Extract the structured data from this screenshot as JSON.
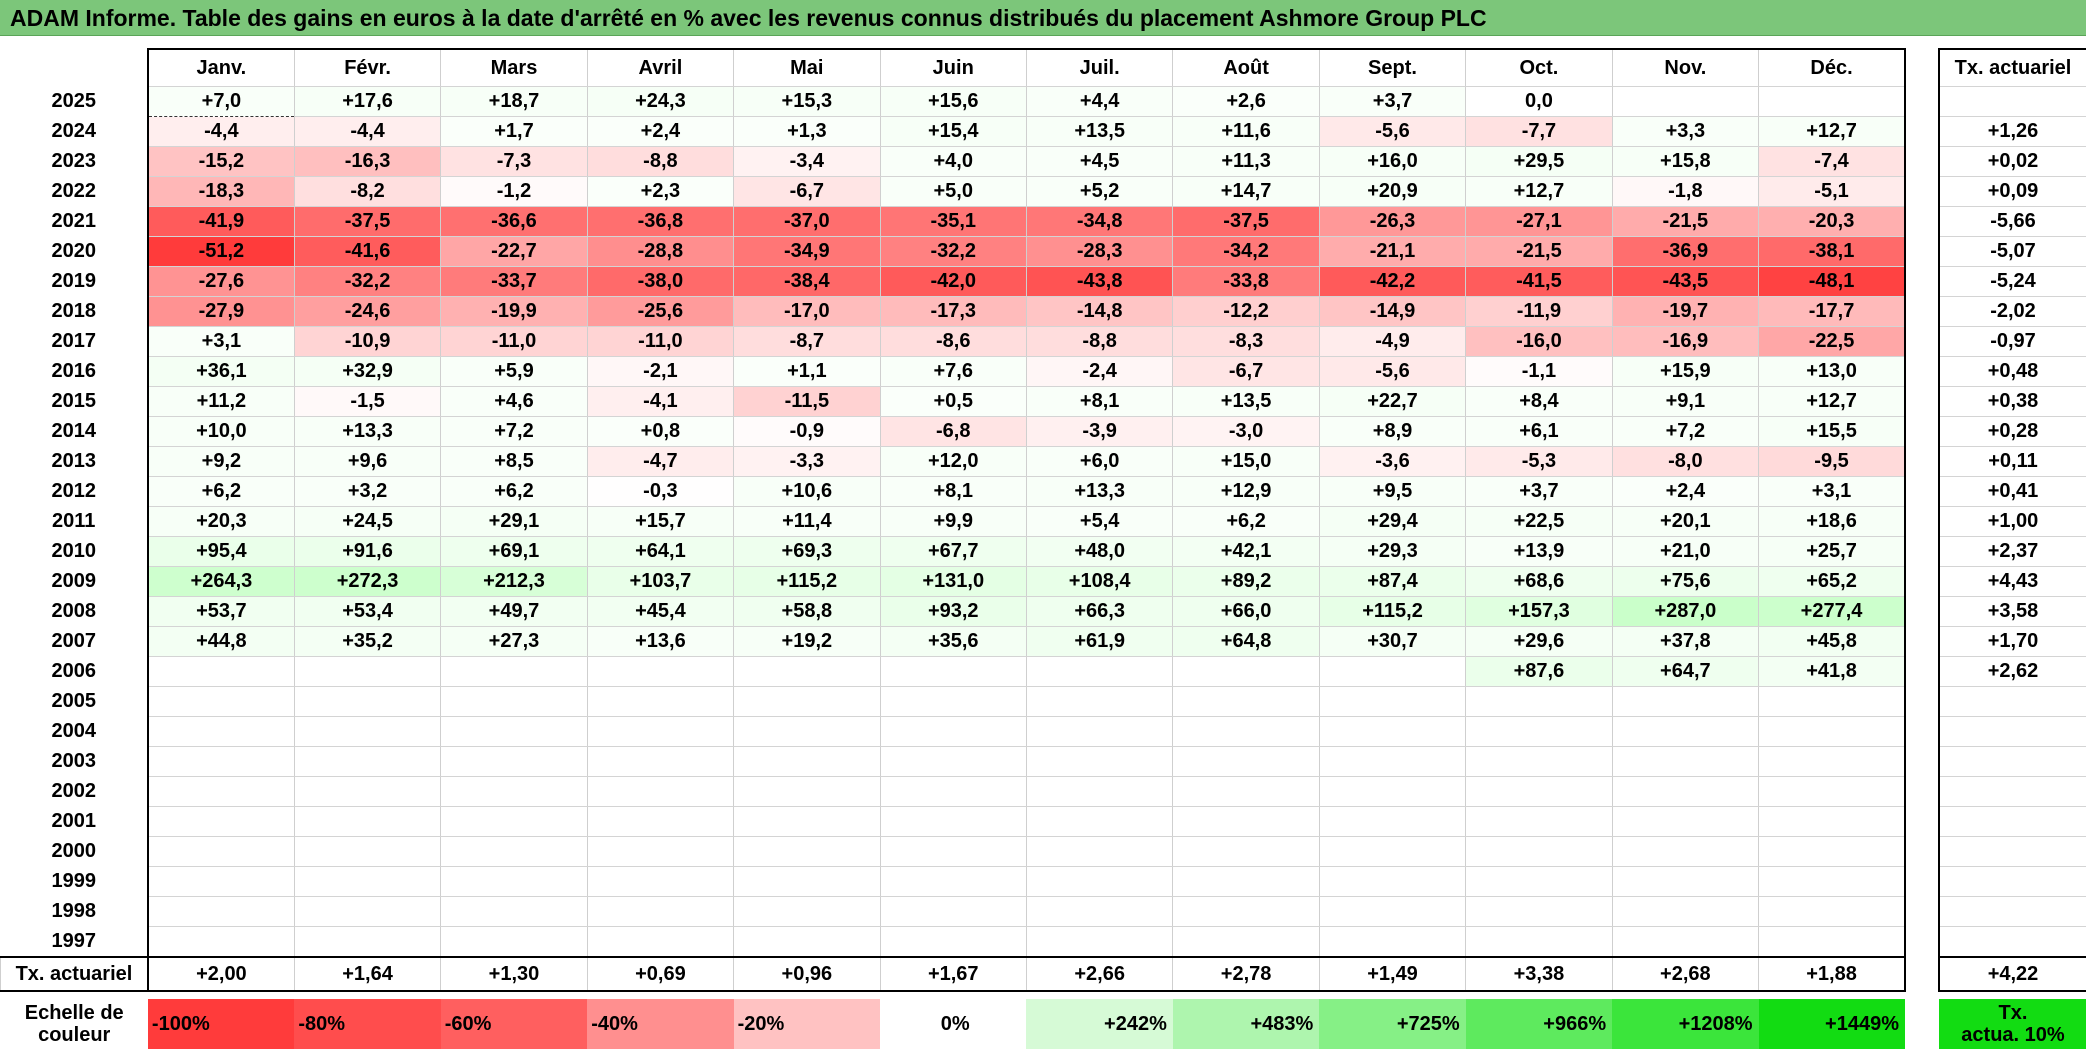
{
  "title": "ADAM Informe. Table des gains en euros à la date d'arrêté en % avec les revenus connus distribués du placement Ashmore Group PLC",
  "chart_data": {
    "type": "heatmap",
    "months": [
      "Janv.",
      "Févr.",
      "Mars",
      "Avril",
      "Mai",
      "Juin",
      "Juil.",
      "Août",
      "Sept.",
      "Oct.",
      "Nov.",
      "Déc."
    ],
    "side_header": "Tx. actuariel",
    "rows": [
      {
        "year": "2025",
        "values": [
          "+7,0",
          "+17,6",
          "+18,7",
          "+24,3",
          "+15,3",
          "+15,6",
          "+4,4",
          "+2,6",
          "+3,7",
          "0,0",
          "",
          ""
        ],
        "rate": ""
      },
      {
        "year": "2024",
        "values": [
          "-4,4",
          "-4,4",
          "+1,7",
          "+2,4",
          "+1,3",
          "+15,4",
          "+13,5",
          "+11,6",
          "-5,6",
          "-7,7",
          "+3,3",
          "+12,7"
        ],
        "rate": "+1,26"
      },
      {
        "year": "2023",
        "values": [
          "-15,2",
          "-16,3",
          "-7,3",
          "-8,8",
          "-3,4",
          "+4,0",
          "+4,5",
          "+11,3",
          "+16,0",
          "+29,5",
          "+15,8",
          "-7,4"
        ],
        "rate": "+0,02"
      },
      {
        "year": "2022",
        "values": [
          "-18,3",
          "-8,2",
          "-1,2",
          "+2,3",
          "-6,7",
          "+5,0",
          "+5,2",
          "+14,7",
          "+20,9",
          "+12,7",
          "-1,8",
          "-5,1"
        ],
        "rate": "+0,09"
      },
      {
        "year": "2021",
        "values": [
          "-41,9",
          "-37,5",
          "-36,6",
          "-36,8",
          "-37,0",
          "-35,1",
          "-34,8",
          "-37,5",
          "-26,3",
          "-27,1",
          "-21,5",
          "-20,3"
        ],
        "rate": "-5,66"
      },
      {
        "year": "2020",
        "values": [
          "-51,2",
          "-41,6",
          "-22,7",
          "-28,8",
          "-34,9",
          "-32,2",
          "-28,3",
          "-34,2",
          "-21,1",
          "-21,5",
          "-36,9",
          "-38,1"
        ],
        "rate": "-5,07"
      },
      {
        "year": "2019",
        "values": [
          "-27,6",
          "-32,2",
          "-33,7",
          "-38,0",
          "-38,4",
          "-42,0",
          "-43,8",
          "-33,8",
          "-42,2",
          "-41,5",
          "-43,5",
          "-48,1"
        ],
        "rate": "-5,24"
      },
      {
        "year": "2018",
        "values": [
          "-27,9",
          "-24,6",
          "-19,9",
          "-25,6",
          "-17,0",
          "-17,3",
          "-14,8",
          "-12,2",
          "-14,9",
          "-11,9",
          "-19,7",
          "-17,7"
        ],
        "rate": "-2,02"
      },
      {
        "year": "2017",
        "values": [
          "+3,1",
          "-10,9",
          "-11,0",
          "-11,0",
          "-8,7",
          "-8,6",
          "-8,8",
          "-8,3",
          "-4,9",
          "-16,0",
          "-16,9",
          "-22,5"
        ],
        "rate": "-0,97"
      },
      {
        "year": "2016",
        "values": [
          "+36,1",
          "+32,9",
          "+5,9",
          "-2,1",
          "+1,1",
          "+7,6",
          "-2,4",
          "-6,7",
          "-5,6",
          "-1,1",
          "+15,9",
          "+13,0"
        ],
        "rate": "+0,48"
      },
      {
        "year": "2015",
        "values": [
          "+11,2",
          "-1,5",
          "+4,6",
          "-4,1",
          "-11,5",
          "+0,5",
          "+8,1",
          "+13,5",
          "+22,7",
          "+8,4",
          "+9,1",
          "+12,7"
        ],
        "rate": "+0,38"
      },
      {
        "year": "2014",
        "values": [
          "+10,0",
          "+13,3",
          "+7,2",
          "+0,8",
          "-0,9",
          "-6,8",
          "-3,9",
          "-3,0",
          "+8,9",
          "+6,1",
          "+7,2",
          "+15,5"
        ],
        "rate": "+0,28"
      },
      {
        "year": "2013",
        "values": [
          "+9,2",
          "+9,6",
          "+8,5",
          "-4,7",
          "-3,3",
          "+12,0",
          "+6,0",
          "+15,0",
          "-3,6",
          "-5,3",
          "-8,0",
          "-9,5"
        ],
        "rate": "+0,11"
      },
      {
        "year": "2012",
        "values": [
          "+6,2",
          "+3,2",
          "+6,2",
          "-0,3",
          "+10,6",
          "+8,1",
          "+13,3",
          "+12,9",
          "+9,5",
          "+3,7",
          "+2,4",
          "+3,1"
        ],
        "rate": "+0,41"
      },
      {
        "year": "2011",
        "values": [
          "+20,3",
          "+24,5",
          "+29,1",
          "+15,7",
          "+11,4",
          "+9,9",
          "+5,4",
          "+6,2",
          "+29,4",
          "+22,5",
          "+20,1",
          "+18,6"
        ],
        "rate": "+1,00"
      },
      {
        "year": "2010",
        "values": [
          "+95,4",
          "+91,6",
          "+69,1",
          "+64,1",
          "+69,3",
          "+67,7",
          "+48,0",
          "+42,1",
          "+29,3",
          "+13,9",
          "+21,0",
          "+25,7"
        ],
        "rate": "+2,37"
      },
      {
        "year": "2009",
        "values": [
          "+264,3",
          "+272,3",
          "+212,3",
          "+103,7",
          "+115,2",
          "+131,0",
          "+108,4",
          "+89,2",
          "+87,4",
          "+68,6",
          "+75,6",
          "+65,2"
        ],
        "rate": "+4,43"
      },
      {
        "year": "2008",
        "values": [
          "+53,7",
          "+53,4",
          "+49,7",
          "+45,4",
          "+58,8",
          "+93,2",
          "+66,3",
          "+66,0",
          "+115,2",
          "+157,3",
          "+287,0",
          "+277,4"
        ],
        "rate": "+3,58"
      },
      {
        "year": "2007",
        "values": [
          "+44,8",
          "+35,2",
          "+27,3",
          "+13,6",
          "+19,2",
          "+35,6",
          "+61,9",
          "+64,8",
          "+30,7",
          "+29,6",
          "+37,8",
          "+45,8"
        ],
        "rate": "+1,70"
      },
      {
        "year": "2006",
        "values": [
          "",
          "",
          "",
          "",
          "",
          "",
          "",
          "",
          "",
          "+87,6",
          "+64,7",
          "+41,8"
        ],
        "rate": "+2,62"
      },
      {
        "year": "2005",
        "values": [
          "",
          "",
          "",
          "",
          "",
          "",
          "",
          "",
          "",
          "",
          "",
          ""
        ],
        "rate": ""
      },
      {
        "year": "2004",
        "values": [
          "",
          "",
          "",
          "",
          "",
          "",
          "",
          "",
          "",
          "",
          "",
          ""
        ],
        "rate": ""
      },
      {
        "year": "2003",
        "values": [
          "",
          "",
          "",
          "",
          "",
          "",
          "",
          "",
          "",
          "",
          "",
          ""
        ],
        "rate": ""
      },
      {
        "year": "2002",
        "values": [
          "",
          "",
          "",
          "",
          "",
          "",
          "",
          "",
          "",
          "",
          "",
          ""
        ],
        "rate": ""
      },
      {
        "year": "2001",
        "values": [
          "",
          "",
          "",
          "",
          "",
          "",
          "",
          "",
          "",
          "",
          "",
          ""
        ],
        "rate": ""
      },
      {
        "year": "2000",
        "values": [
          "",
          "",
          "",
          "",
          "",
          "",
          "",
          "",
          "",
          "",
          "",
          ""
        ],
        "rate": ""
      },
      {
        "year": "1999",
        "values": [
          "",
          "",
          "",
          "",
          "",
          "",
          "",
          "",
          "",
          "",
          "",
          ""
        ],
        "rate": ""
      },
      {
        "year": "1998",
        "values": [
          "",
          "",
          "",
          "",
          "",
          "",
          "",
          "",
          "",
          "",
          "",
          ""
        ],
        "rate": ""
      },
      {
        "year": "1997",
        "values": [
          "",
          "",
          "",
          "",
          "",
          "",
          "",
          "",
          "",
          "",
          "",
          ""
        ],
        "rate": ""
      }
    ],
    "totals_label": "Tx. actuariel",
    "totals": [
      "+2,00",
      "+1,64",
      "+1,30",
      "+0,69",
      "+0,96",
      "+1,67",
      "+2,66",
      "+2,78",
      "+1,49",
      "+3,38",
      "+2,68",
      "+1,88"
    ],
    "total_rate": "+4,22",
    "scale_label_line1": "Echelle de",
    "scale_label_line2": "couleur",
    "scale": [
      {
        "label": "-100%",
        "color": "#ff3b3b"
      },
      {
        "label": "-80%",
        "color": "#ff4d4d"
      },
      {
        "label": "-60%",
        "color": "#ff5f5f"
      },
      {
        "label": "-40%",
        "color": "#ff8f8f"
      },
      {
        "label": "-20%",
        "color": "#ffc2c2"
      },
      {
        "label": "0%",
        "color": "#ffffff"
      },
      {
        "label": "+242%",
        "color": "#d6fad6"
      },
      {
        "label": "+483%",
        "color": "#aef5ae"
      },
      {
        "label": "+725%",
        "color": "#86f086"
      },
      {
        "label": "+966%",
        "color": "#5eea5e"
      },
      {
        "label": "+1208%",
        "color": "#3be53b"
      },
      {
        "label": "+1449%",
        "color": "#12dc12"
      }
    ],
    "scale_side_line1": "Tx.",
    "scale_side_line2": "actua. 10%",
    "scale_side_color": "#12dc12"
  }
}
